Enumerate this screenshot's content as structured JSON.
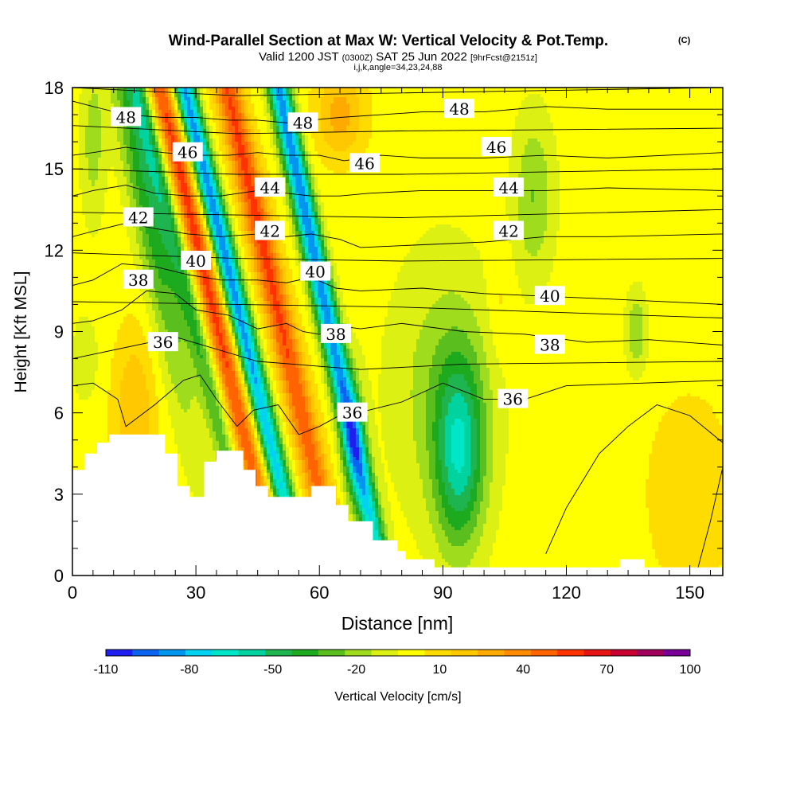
{
  "header": {
    "title": "Wind-Parallel Section at Max W: Vertical Velocity & Pot.Temp.",
    "title_mark": "(C)",
    "valid_label": "Valid 1200 JST",
    "valid_utc": "(0300Z)",
    "valid_date": "SAT 25 Jun 2022",
    "forecast": "[9hrFcst@2151z]",
    "indices": "i,j,k,angle=34,23,24,88"
  },
  "chart_data": {
    "type": "heatmap",
    "xlabel": "Distance [nm]",
    "ylabel": "Height [Kft MSL]",
    "xlim": [
      0,
      158
    ],
    "ylim": [
      0,
      18
    ],
    "x_ticks": [
      0,
      30,
      60,
      90,
      120,
      150
    ],
    "y_ticks": [
      0,
      3,
      6,
      9,
      12,
      15,
      18
    ],
    "grid": false,
    "colorbar": {
      "label": "Vertical Velocity [cm/s]",
      "tick_labels": [
        -110,
        -80,
        -50,
        -20,
        10,
        40,
        70,
        100
      ],
      "levels": [
        -110,
        -100,
        -90,
        -80,
        -70,
        -60,
        -50,
        -40,
        -30,
        -20,
        -10,
        0,
        10,
        20,
        30,
        40,
        50,
        60,
        70,
        80,
        90,
        100
      ],
      "colors": [
        "#1e1ef0",
        "#0a64f0",
        "#0096f0",
        "#00d2f0",
        "#00e6c8",
        "#00d2a0",
        "#1eb450",
        "#1eaa1e",
        "#5abe1e",
        "#a0dc1e",
        "#dcf014",
        "#ffff00",
        "#ffdc00",
        "#ffc800",
        "#ffaa00",
        "#ff8c00",
        "#ff6400",
        "#ff3200",
        "#e61414",
        "#c80032",
        "#a0005a",
        "#780096"
      ]
    },
    "terrain": [
      [
        0,
        3.9
      ],
      [
        3,
        3.9
      ],
      [
        3,
        4.5
      ],
      [
        6,
        4.5
      ],
      [
        6,
        4.9
      ],
      [
        9,
        4.9
      ],
      [
        9,
        5.2
      ],
      [
        22.5,
        5.2
      ],
      [
        22.5,
        4.5
      ],
      [
        25.5,
        4.5
      ],
      [
        25.5,
        3.3
      ],
      [
        28.5,
        3.3
      ],
      [
        28.5,
        2.9
      ],
      [
        32,
        2.9
      ],
      [
        32,
        4.2
      ],
      [
        35,
        4.2
      ],
      [
        35,
        4.6
      ],
      [
        41.5,
        4.6
      ],
      [
        41.5,
        3.9
      ],
      [
        44.5,
        3.9
      ],
      [
        44.5,
        3.3
      ],
      [
        47.5,
        3.3
      ],
      [
        47.5,
        2.9
      ],
      [
        58,
        2.9
      ],
      [
        58,
        3.3
      ],
      [
        64,
        3.3
      ],
      [
        64,
        2.6
      ],
      [
        67,
        2.6
      ],
      [
        67,
        2.0
      ],
      [
        73,
        2.0
      ],
      [
        73,
        1.3
      ],
      [
        79,
        1.3
      ],
      [
        79,
        0.9
      ],
      [
        81,
        0.9
      ],
      [
        81,
        0.6
      ],
      [
        88,
        0.6
      ],
      [
        88,
        0.3
      ],
      [
        133,
        0.3
      ],
      [
        133,
        0.6
      ],
      [
        139,
        0.6
      ],
      [
        139,
        0.3
      ],
      [
        158,
        0.3
      ]
    ],
    "theta_contours": [
      {
        "label": "36",
        "points": [
          [
            0,
            7.0
          ],
          [
            5,
            7.1
          ],
          [
            11,
            6.5
          ],
          [
            13,
            5.5
          ],
          [
            20,
            6.3
          ],
          [
            27,
            7.2
          ],
          [
            31,
            7.4
          ],
          [
            35,
            6.5
          ],
          [
            40,
            5.5
          ],
          [
            44,
            6.1
          ],
          [
            50,
            6.3
          ],
          [
            55,
            5.2
          ],
          [
            60,
            5.5
          ],
          [
            66,
            6.0
          ],
          [
            72,
            6.1
          ],
          [
            80,
            6.4
          ],
          [
            90,
            7.1
          ],
          [
            100,
            6.5
          ],
          [
            110,
            6.5
          ],
          [
            120,
            7.0
          ],
          [
            158,
            7.2
          ]
        ],
        "label_pos": [
          [
            22,
            8.6
          ],
          [
            68,
            6.0
          ],
          [
            107,
            6.5
          ]
        ]
      },
      {
        "label": "38",
        "points": [
          [
            0,
            9.3
          ],
          [
            5,
            9.4
          ],
          [
            12,
            9.8
          ],
          [
            18,
            10.5
          ],
          [
            25,
            10.4
          ],
          [
            30,
            9.8
          ],
          [
            38,
            9.6
          ],
          [
            45,
            9.1
          ],
          [
            52,
            9.3
          ],
          [
            56,
            9.0
          ],
          [
            60,
            8.9
          ],
          [
            65,
            9.2
          ],
          [
            70,
            9.1
          ],
          [
            80,
            9.3
          ],
          [
            95,
            9.0
          ],
          [
            110,
            8.9
          ],
          [
            125,
            8.6
          ],
          [
            140,
            8.7
          ],
          [
            158,
            8.5
          ]
        ],
        "label_pos": [
          [
            16,
            10.9
          ],
          [
            64,
            8.9
          ],
          [
            116,
            8.5
          ]
        ]
      },
      {
        "label": "40",
        "points": [
          [
            0,
            10.7
          ],
          [
            5,
            10.9
          ],
          [
            12,
            11.5
          ],
          [
            20,
            11.4
          ],
          [
            28,
            11.1
          ],
          [
            36,
            10.9
          ],
          [
            45,
            10.9
          ],
          [
            52,
            10.8
          ],
          [
            58,
            11.0
          ],
          [
            64,
            10.6
          ],
          [
            70,
            10.5
          ],
          [
            85,
            10.6
          ],
          [
            100,
            10.4
          ],
          [
            115,
            10.3
          ],
          [
            130,
            10.2
          ],
          [
            158,
            10.0
          ]
        ],
        "label_pos": [
          [
            30,
            11.6
          ],
          [
            59,
            11.2
          ],
          [
            116,
            10.3
          ]
        ]
      },
      {
        "label": "42",
        "points": [
          [
            0,
            12.5
          ],
          [
            5,
            12.7
          ],
          [
            13,
            13.0
          ],
          [
            20,
            12.8
          ],
          [
            28,
            12.6
          ],
          [
            36,
            12.5
          ],
          [
            45,
            12.6
          ],
          [
            52,
            12.5
          ],
          [
            58,
            12.6
          ],
          [
            65,
            12.4
          ],
          [
            70,
            12.1
          ],
          [
            85,
            12.2
          ],
          [
            100,
            12.3
          ],
          [
            115,
            12.5
          ],
          [
            130,
            12.5
          ],
          [
            158,
            12.6
          ]
        ],
        "label_pos": [
          [
            16,
            13.2
          ],
          [
            48,
            12.7
          ],
          [
            106,
            12.7
          ]
        ]
      },
      {
        "label": "44",
        "points": [
          [
            0,
            14.0
          ],
          [
            5,
            14.2
          ],
          [
            13,
            14.4
          ],
          [
            20,
            14.1
          ],
          [
            28,
            14.0
          ],
          [
            36,
            14.0
          ],
          [
            45,
            14.2
          ],
          [
            52,
            14.1
          ],
          [
            58,
            14.0
          ],
          [
            65,
            14.0
          ],
          [
            72,
            14.1
          ],
          [
            85,
            14.2
          ],
          [
            100,
            14.2
          ],
          [
            115,
            14.2
          ],
          [
            130,
            14.3
          ],
          [
            158,
            14.2
          ]
        ],
        "label_pos": [
          [
            48,
            14.3
          ],
          [
            106,
            14.3
          ]
        ]
      },
      {
        "label": "46",
        "points": [
          [
            0,
            15.5
          ],
          [
            5,
            15.6
          ],
          [
            13,
            15.8
          ],
          [
            22,
            15.6
          ],
          [
            30,
            15.5
          ],
          [
            38,
            15.5
          ],
          [
            45,
            15.6
          ],
          [
            52,
            15.5
          ],
          [
            60,
            15.5
          ],
          [
            66,
            15.3
          ],
          [
            75,
            15.5
          ],
          [
            85,
            15.4
          ],
          [
            100,
            15.4
          ],
          [
            115,
            15.5
          ],
          [
            130,
            15.4
          ],
          [
            158,
            15.6
          ]
        ],
        "label_pos": [
          [
            28,
            15.6
          ],
          [
            71,
            15.2
          ],
          [
            103,
            15.8
          ]
        ]
      },
      {
        "label": "48",
        "points": [
          [
            0,
            17.5
          ],
          [
            5,
            17.3
          ],
          [
            13,
            17.0
          ],
          [
            22,
            16.9
          ],
          [
            30,
            16.9
          ],
          [
            38,
            16.8
          ],
          [
            45,
            16.8
          ],
          [
            52,
            16.7
          ],
          [
            58,
            16.8
          ],
          [
            65,
            16.9
          ],
          [
            75,
            17.0
          ],
          [
            85,
            17.1
          ],
          [
            100,
            17.1
          ],
          [
            115,
            17.3
          ],
          [
            130,
            17.2
          ],
          [
            158,
            17.2
          ]
        ],
        "label_pos": [
          [
            13,
            16.9
          ],
          [
            56,
            16.7
          ],
          [
            94,
            17.2
          ]
        ]
      },
      {
        "points": [
          [
            0,
            18.0
          ],
          [
            40,
            17.7
          ],
          [
            80,
            17.8
          ],
          [
            158,
            18.0
          ]
        ]
      },
      {
        "points": [
          [
            0,
            16.6
          ],
          [
            40,
            16.3
          ],
          [
            80,
            16.4
          ],
          [
            158,
            16.5
          ]
        ]
      },
      {
        "points": [
          [
            0,
            15.0
          ],
          [
            40,
            14.8
          ],
          [
            80,
            14.8
          ],
          [
            158,
            15.0
          ]
        ]
      },
      {
        "points": [
          [
            0,
            13.4
          ],
          [
            40,
            13.3
          ],
          [
            80,
            13.2
          ],
          [
            158,
            13.5
          ]
        ]
      },
      {
        "points": [
          [
            0,
            11.9
          ],
          [
            40,
            11.7
          ],
          [
            80,
            11.6
          ],
          [
            158,
            11.7
          ]
        ]
      },
      {
        "points": [
          [
            0,
            10.1
          ],
          [
            40,
            10.0
          ],
          [
            80,
            9.9
          ],
          [
            158,
            9.5
          ]
        ]
      },
      {
        "points": [
          [
            0,
            8.0
          ],
          [
            25,
            8.8
          ],
          [
            45,
            7.9
          ],
          [
            70,
            7.6
          ],
          [
            95,
            7.8
          ],
          [
            158,
            7.9
          ]
        ]
      },
      {
        "points": [
          [
            115,
            0.8
          ],
          [
            120,
            2.5
          ],
          [
            128,
            4.5
          ],
          [
            135,
            5.5
          ],
          [
            142,
            6.3
          ],
          [
            150,
            5.9
          ],
          [
            158,
            4.9
          ]
        ]
      },
      {
        "points": [
          [
            152,
            0.3
          ],
          [
            155,
            2.0
          ],
          [
            158,
            4.0
          ]
        ]
      }
    ],
    "w_field": {
      "background": 5,
      "features": [
        {
          "x": 29,
          "y": 13,
          "sx": 3.5,
          "sy": 22,
          "tilt": -1.6,
          "w": 62
        },
        {
          "x": 35,
          "y": 13,
          "sx": 2.8,
          "sy": 22,
          "tilt": -1.6,
          "w": -95
        },
        {
          "x": 45,
          "y": 13,
          "sx": 3.5,
          "sy": 22,
          "tilt": -1.5,
          "w": 58
        },
        {
          "x": 57,
          "y": 13,
          "sx": 2.8,
          "sy": 22,
          "tilt": -1.4,
          "w": -95
        },
        {
          "x": 24,
          "y": 13,
          "sx": 3.0,
          "sy": 20,
          "tilt": -1.6,
          "w": -40
        },
        {
          "x": 18,
          "y": 14,
          "sx": 4.5,
          "sy": 8,
          "tilt": -1.2,
          "w": -40
        },
        {
          "x": 15,
          "y": 6,
          "sx": 5,
          "sy": 3,
          "tilt": 0,
          "w": 25
        },
        {
          "x": 65,
          "y": 17,
          "sx": 6,
          "sy": 1.6,
          "tilt": 0,
          "w": 30
        },
        {
          "x": 68,
          "y": 5,
          "sx": 3,
          "sy": 2.5,
          "tilt": 0,
          "w": -30
        },
        {
          "x": 94,
          "y": 4.5,
          "sx": 6,
          "sy": 3.5,
          "tilt": 0,
          "w": -55
        },
        {
          "x": 90,
          "y": 7,
          "sx": 13,
          "sy": 5,
          "tilt": 0,
          "w": -20
        },
        {
          "x": 112,
          "y": 14,
          "sx": 5,
          "sy": 3,
          "tilt": 0,
          "w": -25
        },
        {
          "x": 104,
          "y": 10,
          "sx": 3,
          "sy": 2,
          "tilt": 0,
          "w": 10
        },
        {
          "x": 137,
          "y": 9,
          "sx": 2.5,
          "sy": 1.5,
          "tilt": 0,
          "w": -25
        },
        {
          "x": 150,
          "y": 3,
          "sx": 10,
          "sy": 3.5,
          "tilt": 0,
          "w": 15
        },
        {
          "x": 5,
          "y": 16,
          "sx": 3,
          "sy": 3,
          "tilt": 0,
          "w": -20
        },
        {
          "x": 3,
          "y": 8,
          "sx": 3,
          "sy": 1.5,
          "tilt": 0,
          "w": -15
        }
      ]
    }
  }
}
